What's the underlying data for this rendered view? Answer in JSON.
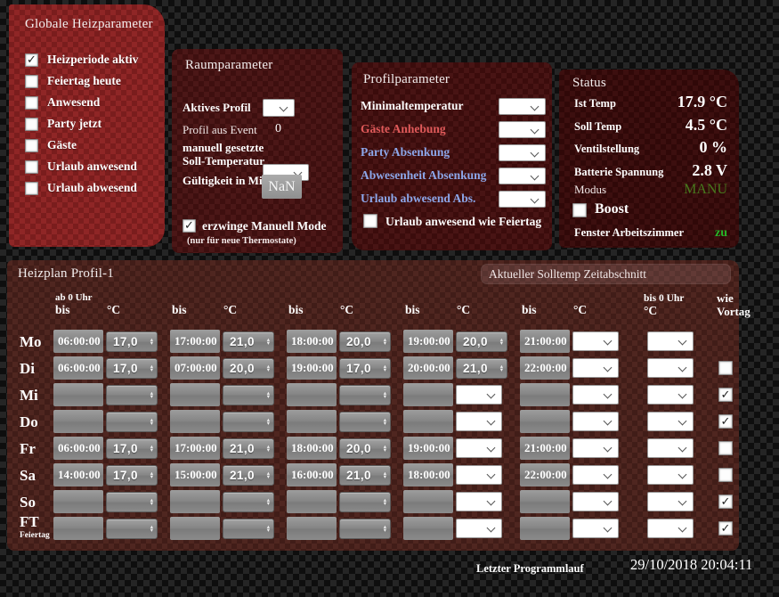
{
  "global_panel": {
    "title": "Globale Heizparameter",
    "items": [
      {
        "label": "Heizperiode aktiv",
        "checked": true
      },
      {
        "label": "Feiertag heute",
        "checked": false
      },
      {
        "label": "Anwesend",
        "checked": false
      },
      {
        "label": "Party jetzt",
        "checked": false
      },
      {
        "label": "Gäste",
        "checked": false
      },
      {
        "label": "Urlaub anwesend",
        "checked": false
      },
      {
        "label": "Urlaub abwesend",
        "checked": false
      }
    ]
  },
  "room_panel": {
    "title": "Raumparameter",
    "aktives_profil": {
      "label": "Aktives Profil",
      "value": ""
    },
    "profil_aus_event": {
      "label": "Profil aus Event",
      "value": "0"
    },
    "manuell": {
      "label_line1": "manuell gesetzte",
      "label_line2": "Soll-Temperatur",
      "value": ""
    },
    "gueltigkeit": {
      "label": "Gültigkeit in Min",
      "value": "NaN"
    },
    "erzwinge": {
      "label": "erzwinge Manuell Mode",
      "checked": true,
      "note": "(nur für neue Thermostate)"
    }
  },
  "profile_panel": {
    "title": "Profilparameter",
    "rows": [
      {
        "label": "Minimaltemperatur",
        "label_color": "#ffffff",
        "value": ""
      },
      {
        "label": "Gäste Anhebung",
        "label_color": "#e05a5a",
        "value": ""
      },
      {
        "label": "Party Absenkung",
        "label_color": "#8ca7ea",
        "value": ""
      },
      {
        "label": "Abwesenheit Absenkung",
        "label_color": "#8ca7ea",
        "value": ""
      },
      {
        "label": "Urlaub abwesend Abs.",
        "label_color": "#8ca7ea",
        "value": ""
      }
    ],
    "urlaub_wie_feiertag": {
      "label": "Urlaub anwesend wie Feiertag",
      "checked": false
    }
  },
  "status_panel": {
    "title": "Status",
    "rows": [
      {
        "label": "Ist Temp",
        "value": "17.9 °C"
      },
      {
        "label": "Soll Temp",
        "value": "4.5 °C"
      },
      {
        "label": "Ventilstellung",
        "value": "0 %"
      },
      {
        "label": "Batterie Spannung",
        "value": "2.8 V"
      }
    ],
    "modus": {
      "label": "Modus",
      "value": "MANU",
      "value_color": "#47791d"
    },
    "boost": {
      "label": "Boost",
      "checked": false
    },
    "fenster": {
      "label": "Fenster Arbeitszimmer",
      "value": "zu",
      "value_color": "#27b427"
    }
  },
  "schedule": {
    "title": "Heizplan Profil-1",
    "solltemp_bar_label": "Aktueller Solltemp Zeitabschnitt",
    "header": {
      "ab0": "ab 0 Uhr",
      "bis": "bis",
      "degc": "°C",
      "bis0_line1": "bis 0 Uhr",
      "bis0_line2": "°C",
      "vortag_line1": "wie",
      "vortag_line2": "Vortag"
    },
    "rows": [
      {
        "day": "Mo",
        "sub": "",
        "vortag": "none",
        "final": {
          "widget": "select",
          "value": ""
        },
        "periods": [
          {
            "time": "06:00:00",
            "temp": "17,0",
            "widget": "stepper"
          },
          {
            "time": "17:00:00",
            "temp": "21,0",
            "widget": "stepper"
          },
          {
            "time": "18:00:00",
            "temp": "20,0",
            "widget": "stepper"
          },
          {
            "time": "19:00:00",
            "temp": "20,0",
            "widget": "stepper"
          },
          {
            "time": "21:00:00",
            "temp": "",
            "widget": "select"
          }
        ]
      },
      {
        "day": "Di",
        "sub": "",
        "vortag": "unchecked",
        "final": {
          "widget": "select",
          "value": ""
        },
        "periods": [
          {
            "time": "06:00:00",
            "temp": "17,0",
            "widget": "stepper"
          },
          {
            "time": "07:00:00",
            "temp": "20,0",
            "widget": "stepper"
          },
          {
            "time": "19:00:00",
            "temp": "17,0",
            "widget": "stepper"
          },
          {
            "time": "20:00:00",
            "temp": "21,0",
            "widget": "stepper"
          },
          {
            "time": "22:00:00",
            "temp": "",
            "widget": "select"
          }
        ]
      },
      {
        "day": "Mi",
        "sub": "",
        "vortag": "checked",
        "final": {
          "widget": "select",
          "value": ""
        },
        "periods": [
          {
            "time": "",
            "temp": "",
            "widget": "stepper"
          },
          {
            "time": "",
            "temp": "",
            "widget": "stepper"
          },
          {
            "time": "",
            "temp": "",
            "widget": "stepper"
          },
          {
            "time": "",
            "temp": "",
            "widget": "select"
          },
          {
            "time": "",
            "temp": "",
            "widget": "select"
          }
        ]
      },
      {
        "day": "Do",
        "sub": "",
        "vortag": "checked",
        "final": {
          "widget": "select",
          "value": ""
        },
        "periods": [
          {
            "time": "",
            "temp": "",
            "widget": "stepper"
          },
          {
            "time": "",
            "temp": "",
            "widget": "stepper"
          },
          {
            "time": "",
            "temp": "",
            "widget": "stepper"
          },
          {
            "time": "",
            "temp": "",
            "widget": "select"
          },
          {
            "time": "",
            "temp": "",
            "widget": "select"
          }
        ]
      },
      {
        "day": "Fr",
        "sub": "",
        "vortag": "unchecked",
        "final": {
          "widget": "select",
          "value": ""
        },
        "periods": [
          {
            "time": "06:00:00",
            "temp": "17,0",
            "widget": "stepper"
          },
          {
            "time": "17:00:00",
            "temp": "21,0",
            "widget": "stepper"
          },
          {
            "time": "18:00:00",
            "temp": "20,0",
            "widget": "stepper"
          },
          {
            "time": "19:00:00",
            "temp": "",
            "widget": "select"
          },
          {
            "time": "21:00:00",
            "temp": "",
            "widget": "select"
          }
        ]
      },
      {
        "day": "Sa",
        "sub": "",
        "vortag": "unchecked",
        "final": {
          "widget": "select",
          "value": ""
        },
        "periods": [
          {
            "time": "14:00:00",
            "temp": "17,0",
            "widget": "stepper"
          },
          {
            "time": "15:00:00",
            "temp": "21,0",
            "widget": "stepper"
          },
          {
            "time": "16:00:00",
            "temp": "21,0",
            "widget": "stepper"
          },
          {
            "time": "18:00:00",
            "temp": "",
            "widget": "select"
          },
          {
            "time": "22:00:00",
            "temp": "",
            "widget": "select"
          }
        ]
      },
      {
        "day": "So",
        "sub": "",
        "vortag": "checked",
        "final": {
          "widget": "select",
          "value": ""
        },
        "periods": [
          {
            "time": "",
            "temp": "",
            "widget": "stepper"
          },
          {
            "time": "",
            "temp": "",
            "widget": "stepper"
          },
          {
            "time": "",
            "temp": "",
            "widget": "stepper"
          },
          {
            "time": "",
            "temp": "",
            "widget": "select"
          },
          {
            "time": "",
            "temp": "",
            "widget": "select"
          }
        ]
      },
      {
        "day": "FT",
        "sub": "Feiertag",
        "vortag": "checked",
        "final": {
          "widget": "select",
          "value": ""
        },
        "periods": [
          {
            "time": "",
            "temp": "",
            "widget": "stepper"
          },
          {
            "time": "",
            "temp": "",
            "widget": "stepper"
          },
          {
            "time": "",
            "temp": "",
            "widget": "stepper"
          },
          {
            "time": "",
            "temp": "",
            "widget": "select"
          },
          {
            "time": "",
            "temp": "",
            "widget": "select"
          }
        ]
      }
    ]
  },
  "footer": {
    "label": "Letzter Programmlauf",
    "value": "29/10/2018 20:04:11"
  }
}
